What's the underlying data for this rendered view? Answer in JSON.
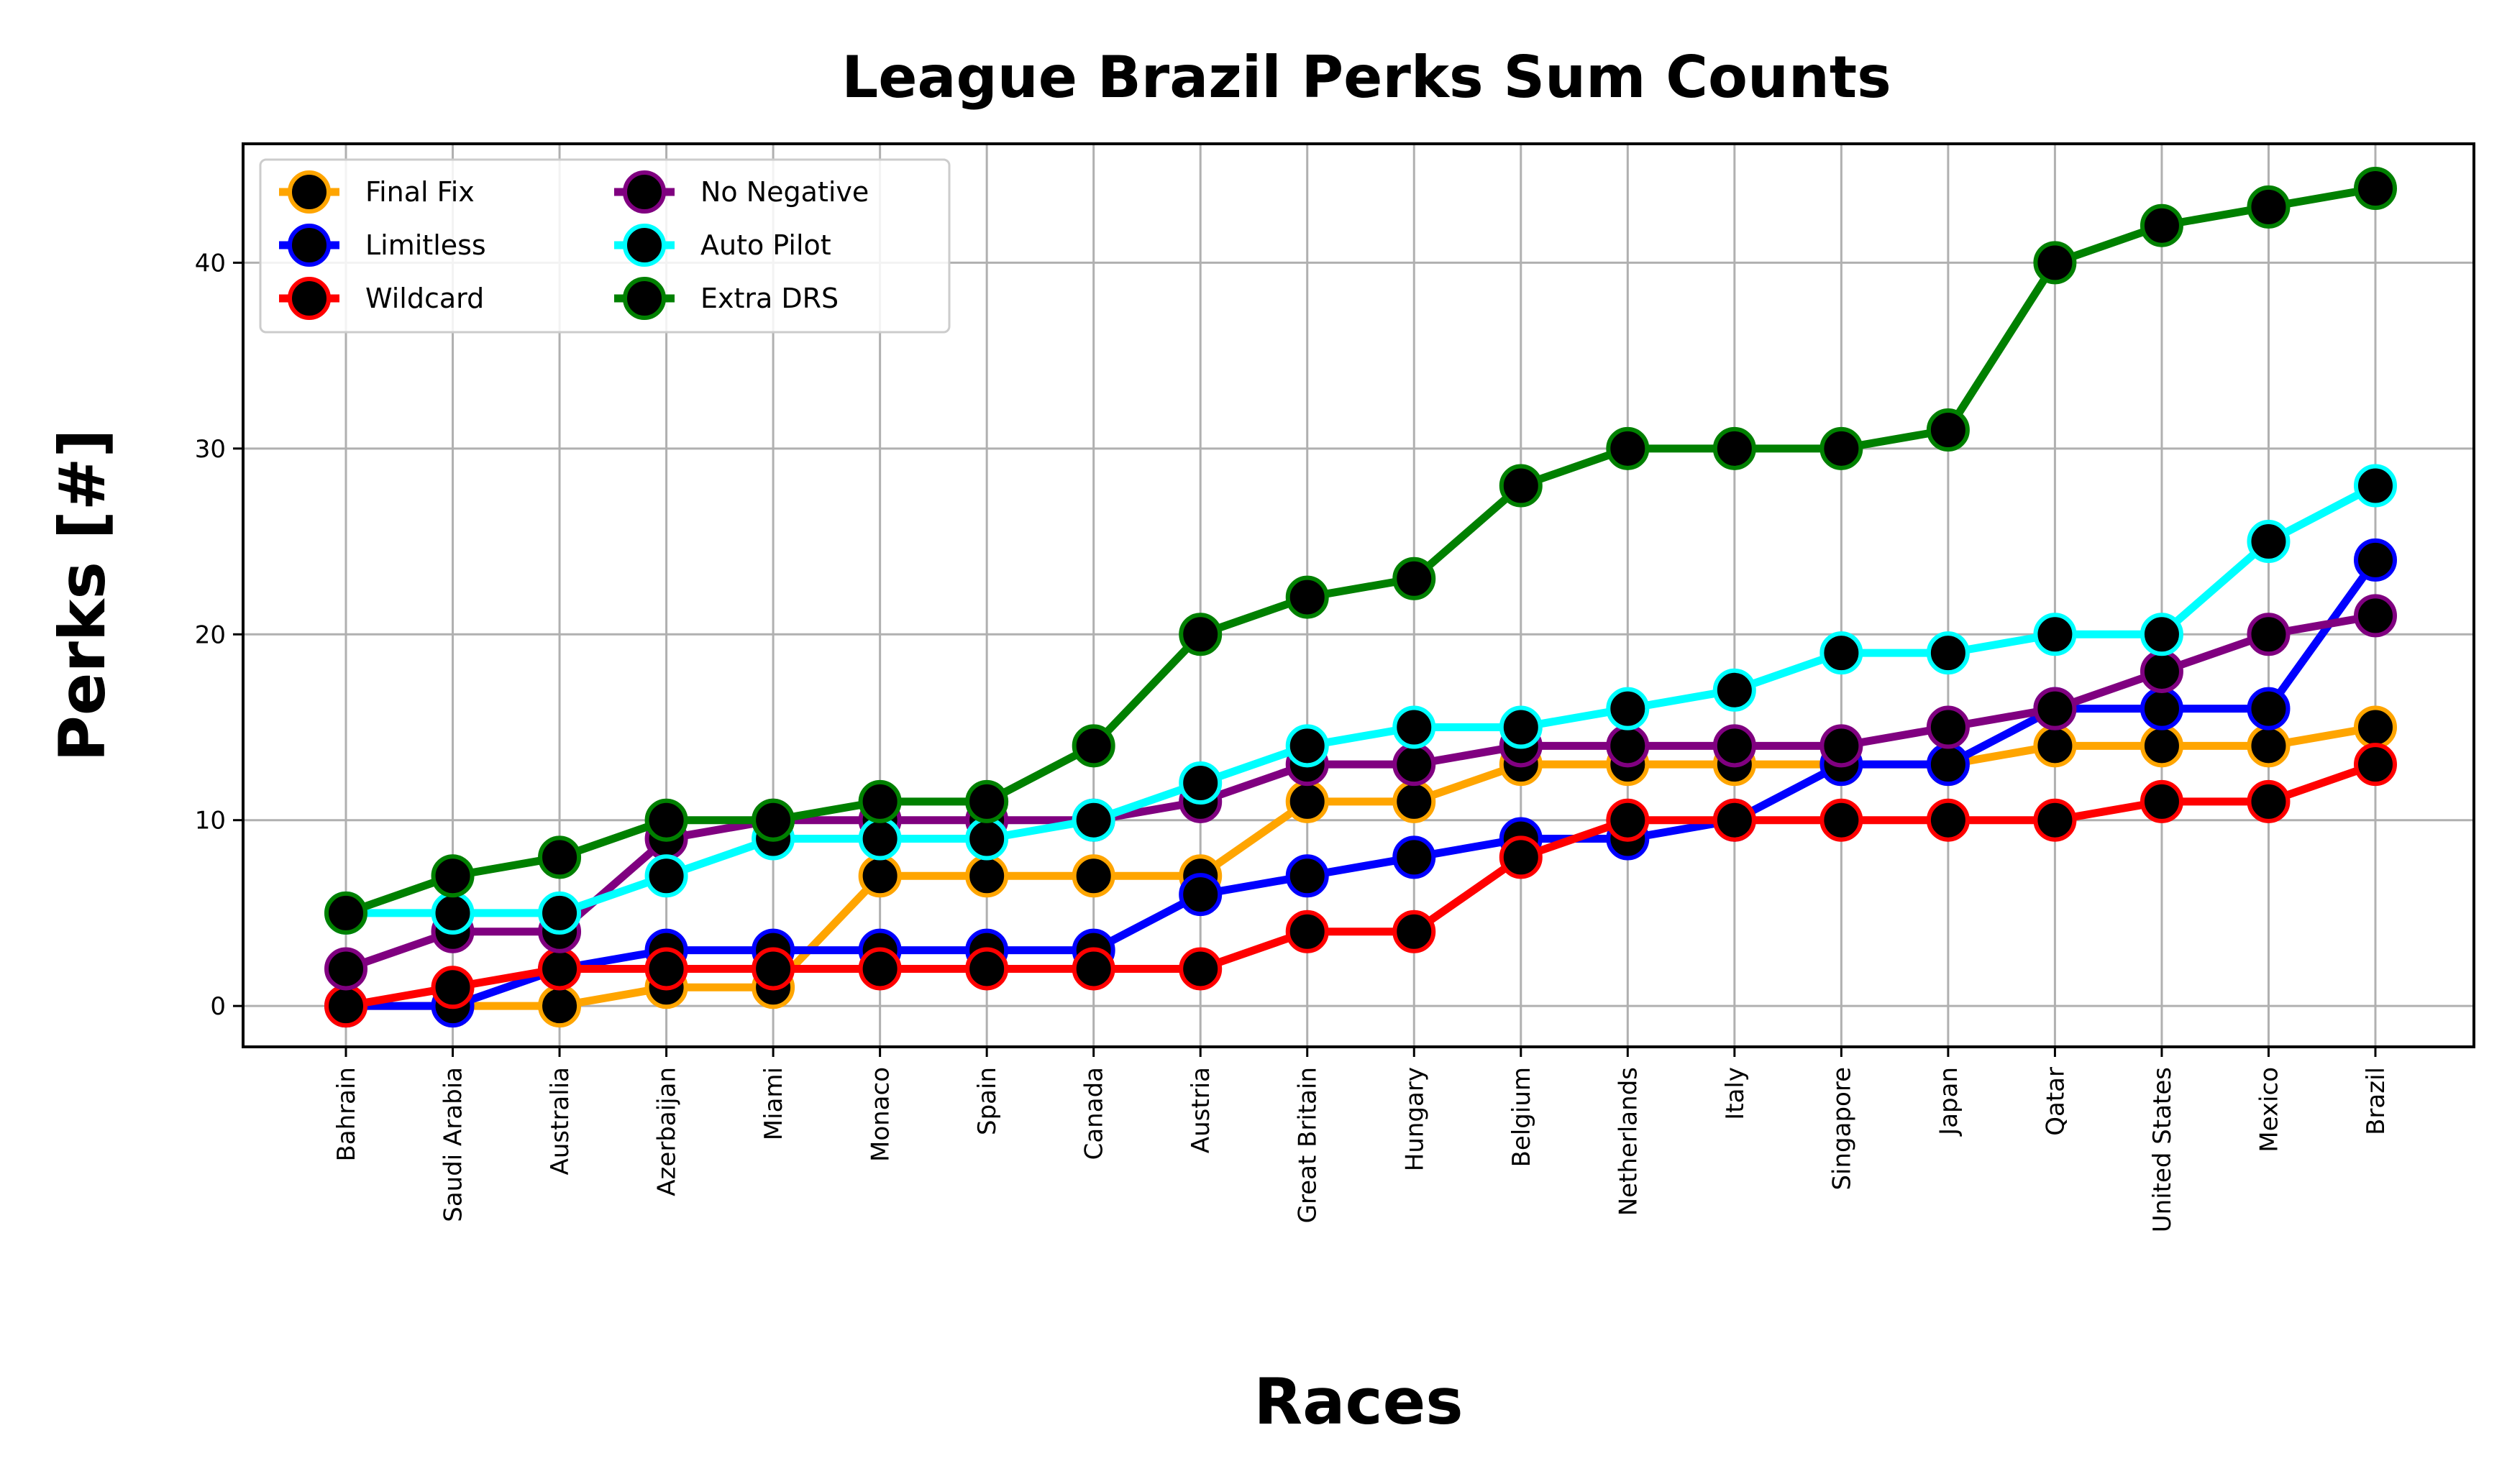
{
  "chart_data": {
    "type": "line",
    "title": "League Brazil Perks Sum Counts",
    "xlabel": "Races",
    "ylabel": "Perks [#]",
    "ylim": [
      -2.2,
      46.4
    ],
    "yticks": [
      0,
      10,
      20,
      30,
      40
    ],
    "grid": true,
    "legend_position": "top-left",
    "categories": [
      "Bahrain",
      "Saudi Arabia",
      "Australia",
      "Azerbaijan",
      "Miami",
      "Monaco",
      "Spain",
      "Canada",
      "Austria",
      "Great Britain",
      "Hungary",
      "Belgium",
      "Netherlands",
      "Italy",
      "Singapore",
      "Japan",
      "Qatar",
      "United States",
      "Mexico",
      "Brazil"
    ],
    "series": [
      {
        "name": "Final Fix",
        "color": "#ffa500",
        "values": [
          0,
          0,
          0,
          1,
          1,
          7,
          7,
          7,
          7,
          11,
          11,
          13,
          13,
          13,
          13,
          13,
          14,
          14,
          14,
          15
        ]
      },
      {
        "name": "Limitless",
        "color": "#0000ff",
        "values": [
          0,
          0,
          2,
          3,
          3,
          3,
          3,
          3,
          6,
          7,
          8,
          9,
          9,
          10,
          13,
          13,
          16,
          16,
          16,
          24
        ]
      },
      {
        "name": "Wildcard",
        "color": "#ff0000",
        "values": [
          0,
          1,
          2,
          2,
          2,
          2,
          2,
          2,
          2,
          4,
          4,
          8,
          10,
          10,
          10,
          10,
          10,
          11,
          11,
          13
        ]
      },
      {
        "name": "No Negative",
        "color": "#800080",
        "values": [
          2,
          4,
          4,
          9,
          10,
          10,
          10,
          10,
          11,
          13,
          13,
          14,
          14,
          14,
          14,
          15,
          16,
          18,
          20,
          21
        ]
      },
      {
        "name": "Auto Pilot",
        "color": "#00ffff",
        "values": [
          5,
          5,
          5,
          7,
          9,
          9,
          9,
          10,
          12,
          14,
          15,
          15,
          16,
          17,
          19,
          19,
          20,
          20,
          25,
          28
        ]
      },
      {
        "name": "Extra DRS",
        "color": "#008000",
        "values": [
          5,
          7,
          8,
          10,
          10,
          11,
          11,
          14,
          20,
          22,
          23,
          28,
          30,
          30,
          30,
          31,
          40,
          42,
          43,
          44
        ]
      }
    ]
  }
}
